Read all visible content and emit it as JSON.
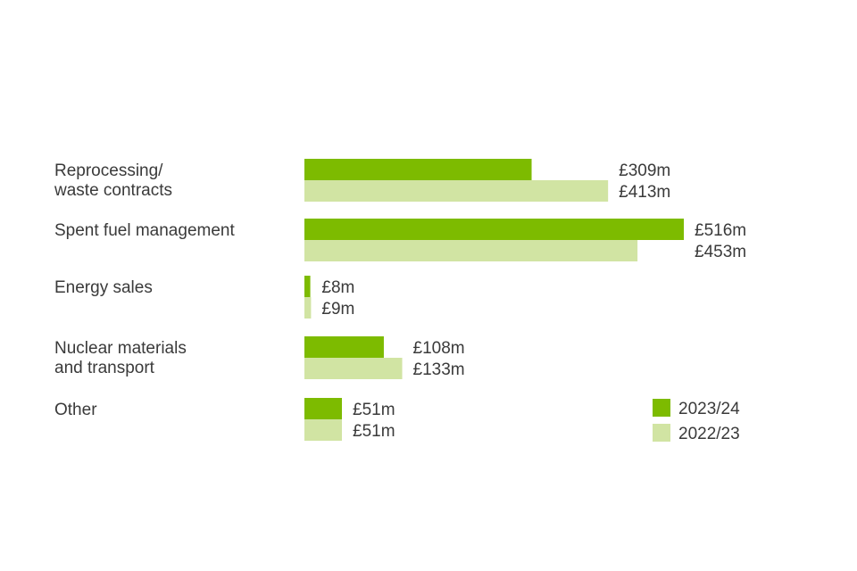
{
  "colors": {
    "series_2023_24": "#7dbb00",
    "series_2022_23": "#d1e4a3"
  },
  "legend": {
    "position": "bottom-right"
  },
  "chart_data": {
    "type": "bar",
    "orientation": "horizontal",
    "categories": [
      [
        "Reprocessing/",
        "waste contracts"
      ],
      [
        "Spent fuel management"
      ],
      [
        "Energy sales"
      ],
      [
        "Nuclear materials",
        "and transport"
      ],
      [
        "Other"
      ]
    ],
    "series": [
      {
        "name": "2023/24",
        "values": [
          309,
          516,
          8,
          108,
          51
        ],
        "labels": [
          "£309m",
          "£516m",
          "£8m",
          "£108m",
          "£51m"
        ]
      },
      {
        "name": "2022/23",
        "values": [
          413,
          453,
          9,
          133,
          51
        ],
        "labels": [
          "£413m",
          "£453m",
          "£9m",
          "£133m",
          "£51m"
        ]
      }
    ],
    "unit": "£m",
    "grid": false,
    "axes_visible": false
  }
}
